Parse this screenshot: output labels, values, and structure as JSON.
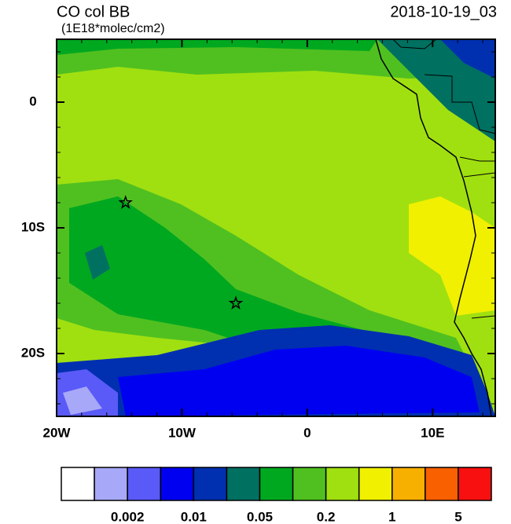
{
  "title": "CO col BB",
  "units": "(1E18*molec/cm2)",
  "date": "2018-10-19_03",
  "map": {
    "lon_lim": [
      -20,
      15
    ],
    "lat_lim": [
      -25,
      5
    ],
    "lon_ticks": [
      {
        "value": -20,
        "label": "20W"
      },
      {
        "value": -10,
        "label": "10W"
      },
      0,
      {
        "value": 10,
        "label": "10E"
      }
    ],
    "lat_ticks": [
      0,
      {
        "value": -10,
        "label": "10S"
      },
      {
        "value": -20,
        "label": "20S"
      }
    ],
    "markers": [
      {
        "lon": -14.5,
        "lat": -8
      },
      {
        "lon": -5.7,
        "lat": -16
      }
    ]
  },
  "colorbar": {
    "colors": [
      "#ffffff",
      "#a8a8f8",
      "#5a5af8",
      "#0000f0",
      "#0030b0",
      "#007060",
      "#00a820",
      "#50c020",
      "#a0e010",
      "#f0f000",
      "#f8b000",
      "#f86000",
      "#f81010"
    ],
    "labels": [
      0.002,
      0.01,
      0.05,
      0.2,
      1,
      5
    ]
  }
}
